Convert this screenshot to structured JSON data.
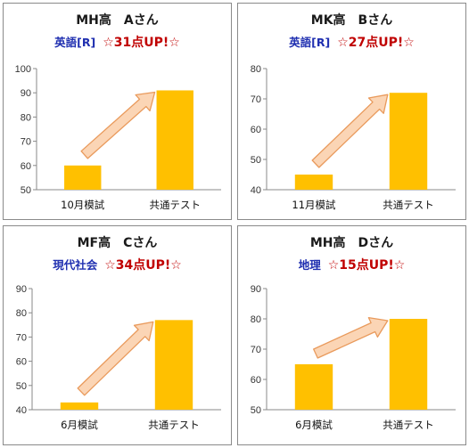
{
  "colors": {
    "bar": "#ffc000",
    "arrow_fill": "#fbd5b5",
    "arrow_stroke": "#e99a5c",
    "subject": "#1f2fb0",
    "gain": "#c00000"
  },
  "chart_data": [
    {
      "type": "bar",
      "title": "MH高　Aさん",
      "subject": "英語[R]",
      "gain": "☆31点UP!☆",
      "categories": [
        "10月模試",
        "共通テスト"
      ],
      "values": [
        60,
        91
      ],
      "ylim": [
        50,
        100
      ],
      "yticks": [
        "50",
        "60",
        "70",
        "80",
        "90",
        "100"
      ],
      "grid": false
    },
    {
      "type": "bar",
      "title": "MK高　Bさん",
      "subject": "英語[R]",
      "gain": "☆27点UP!☆",
      "categories": [
        "11月模試",
        "共通テスト"
      ],
      "values": [
        45,
        72
      ],
      "ylim": [
        40,
        80
      ],
      "yticks": [
        "40",
        "50",
        "60",
        "70",
        "80"
      ],
      "grid": false
    },
    {
      "type": "bar",
      "title": "MF高　Cさん",
      "subject": "現代社会",
      "gain": "☆34点UP!☆",
      "categories": [
        "6月模試",
        "共通テスト"
      ],
      "values": [
        43,
        77
      ],
      "ylim": [
        40,
        90
      ],
      "yticks": [
        "40",
        "50",
        "60",
        "70",
        "80",
        "90"
      ],
      "grid": false
    },
    {
      "type": "bar",
      "title": "MH高　Dさん",
      "subject": "地理",
      "gain": "☆15点UP!☆",
      "categories": [
        "6月模試",
        "共通テスト"
      ],
      "values": [
        65,
        80
      ],
      "ylim": [
        50,
        90
      ],
      "yticks": [
        "50",
        "60",
        "70",
        "80",
        "90"
      ],
      "grid": false
    }
  ]
}
